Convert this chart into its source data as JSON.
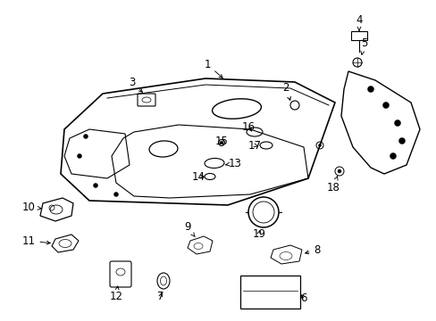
{
  "bg_color": "#ffffff",
  "fig_width": 4.89,
  "fig_height": 3.6,
  "dpi": 100,
  "text_color": "#000000",
  "line_color": "#000000",
  "font_size": 8.5
}
